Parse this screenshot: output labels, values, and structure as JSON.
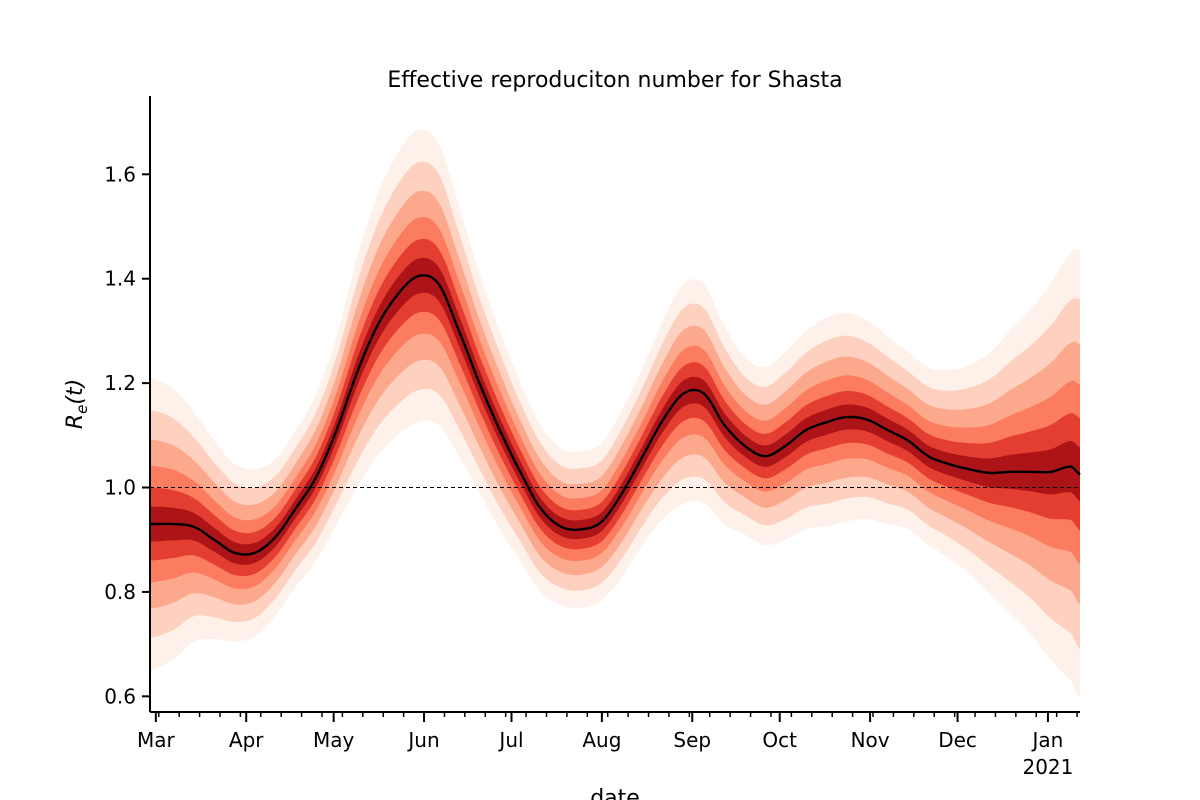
{
  "chart_data": {
    "type": "area",
    "title": "Effective reproduciton number for Shasta",
    "xlabel": "date",
    "ylabel_main": "R",
    "ylabel_sub": "e",
    "ylabel_arg": "(t)",
    "xlim": [
      "2020-02-28",
      "2021-01-12"
    ],
    "ylim": [
      0.57,
      1.75
    ],
    "yticks": [
      0.6,
      0.8,
      1.0,
      1.2,
      1.4,
      1.6
    ],
    "ytick_labels": [
      "0.6",
      "0.8",
      "1.0",
      "1.2",
      "1.4",
      "1.6"
    ],
    "xticks": [
      {
        "date": "2020-03-01",
        "label": "Mar",
        "sublabel": ""
      },
      {
        "date": "2020-04-01",
        "label": "Apr",
        "sublabel": ""
      },
      {
        "date": "2020-05-01",
        "label": "May",
        "sublabel": ""
      },
      {
        "date": "2020-06-01",
        "label": "Jun",
        "sublabel": ""
      },
      {
        "date": "2020-07-01",
        "label": "Jul",
        "sublabel": ""
      },
      {
        "date": "2020-08-01",
        "label": "Aug",
        "sublabel": ""
      },
      {
        "date": "2020-09-01",
        "label": "Sep",
        "sublabel": ""
      },
      {
        "date": "2020-10-01",
        "label": "Oct",
        "sublabel": ""
      },
      {
        "date": "2020-11-01",
        "label": "Nov",
        "sublabel": ""
      },
      {
        "date": "2020-12-01",
        "label": "Dec",
        "sublabel": ""
      },
      {
        "date": "2021-01-01",
        "label": "Jan",
        "sublabel": "2021"
      }
    ],
    "minor_ticks": "weekly",
    "reference_line": {
      "y": 1.0,
      "style": "dashed",
      "color": "#000000"
    },
    "median_color": "#000000",
    "band_colors": [
      "#fee5d9",
      "#fcbba1",
      "#fc9272",
      "#fb6a4a",
      "#de2d26",
      "#a50f15"
    ],
    "series": [
      {
        "x": [
          "2020-02-28",
          "2020-03-07",
          "2020-03-14",
          "2020-03-21",
          "2020-03-28",
          "2020-04-04",
          "2020-04-11",
          "2020-04-18",
          "2020-04-25",
          "2020-05-02",
          "2020-05-09",
          "2020-05-16",
          "2020-05-23",
          "2020-05-30",
          "2020-06-06",
          "2020-06-13",
          "2020-06-20",
          "2020-06-27",
          "2020-07-04",
          "2020-07-11",
          "2020-07-18",
          "2020-07-25",
          "2020-08-01",
          "2020-08-08",
          "2020-08-15",
          "2020-08-22",
          "2020-08-29",
          "2020-09-05",
          "2020-09-12",
          "2020-09-19",
          "2020-09-26",
          "2020-10-03",
          "2020-10-10",
          "2020-10-17",
          "2020-10-24",
          "2020-10-31",
          "2020-11-07",
          "2020-11-14",
          "2020-11-21",
          "2020-11-28",
          "2020-12-05",
          "2020-12-12",
          "2020-12-19",
          "2020-12-26",
          "2021-01-02",
          "2021-01-09",
          "2021-01-12"
        ],
        "median": [
          0.93,
          0.93,
          0.925,
          0.9,
          0.875,
          0.875,
          0.905,
          0.96,
          1.02,
          1.11,
          1.22,
          1.31,
          1.37,
          1.405,
          1.39,
          1.3,
          1.2,
          1.11,
          1.03,
          0.96,
          0.925,
          0.92,
          0.935,
          0.99,
          1.06,
          1.13,
          1.18,
          1.18,
          1.12,
          1.08,
          1.06,
          1.08,
          1.11,
          1.125,
          1.135,
          1.13,
          1.11,
          1.09,
          1.06,
          1.045,
          1.035,
          1.028,
          1.03,
          1.03,
          1.03,
          1.04,
          1.025
        ],
        "p5_half_width": [
          0.28,
          0.26,
          0.22,
          0.19,
          0.17,
          0.16,
          0.15,
          0.15,
          0.16,
          0.18,
          0.22,
          0.25,
          0.27,
          0.28,
          0.27,
          0.24,
          0.21,
          0.19,
          0.17,
          0.16,
          0.15,
          0.15,
          0.15,
          0.16,
          0.17,
          0.19,
          0.21,
          0.21,
          0.19,
          0.17,
          0.17,
          0.18,
          0.19,
          0.2,
          0.2,
          0.19,
          0.18,
          0.17,
          0.17,
          0.18,
          0.2,
          0.23,
          0.27,
          0.31,
          0.36,
          0.41,
          0.43
        ]
      }
    ]
  }
}
